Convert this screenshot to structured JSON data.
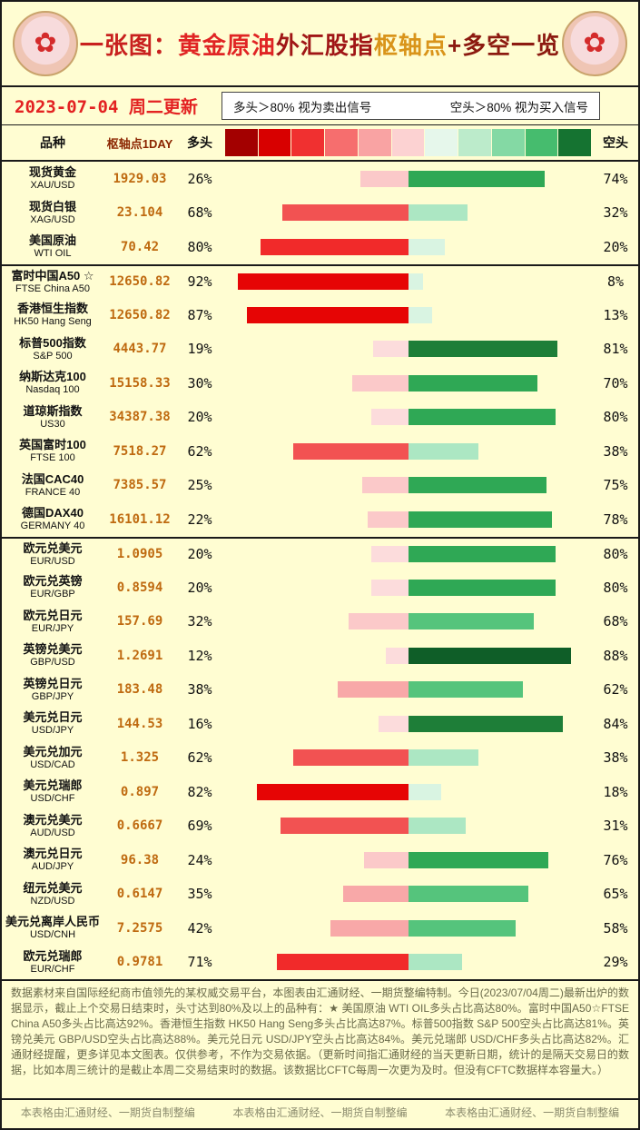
{
  "page": {
    "title_segments": [
      {
        "text": "一张图：",
        "color": "#C8201E"
      },
      {
        "text": "黄金原油",
        "color": "#E02424"
      },
      {
        "text": "外汇股指",
        "color": "#A01616"
      },
      {
        "text": "枢轴点",
        "color": "#D9941A"
      },
      {
        "text": "+多空一览",
        "color": "#8C1A10"
      }
    ],
    "date_text": "2023-07-04 周二更新",
    "legend": {
      "long_note": "多头＞80% 视为卖出信号",
      "short_note": "空头＞80% 视为买入信号"
    },
    "columns": {
      "name": "品种",
      "pivot": "枢轴点1DAY",
      "long": "多头",
      "short": "空头"
    },
    "icons": {
      "flower_glyph": "✿"
    },
    "scale_boxes": [
      "#A30000",
      "#D80000",
      "#F03030",
      "#F66E6E",
      "#F9A3A3",
      "#FCD2D2",
      "#E6F7EB",
      "#BCEBCB",
      "#84D9A4",
      "#46BC6E",
      "#157331"
    ],
    "long_color_steps": [
      {
        "min": 81,
        "color": "#E60505"
      },
      {
        "min": 70,
        "color": "#F12A2A"
      },
      {
        "min": 60,
        "color": "#F25252"
      },
      {
        "min": 45,
        "color": "#F68484"
      },
      {
        "min": 33,
        "color": "#F8A8A8"
      },
      {
        "min": 22,
        "color": "#FBC9C9"
      },
      {
        "min": 0,
        "color": "#FCDCDC"
      }
    ],
    "short_color_steps": [
      {
        "min": 85,
        "color": "#0F5E28"
      },
      {
        "min": 81,
        "color": "#1E7E38"
      },
      {
        "min": 70,
        "color": "#2FA855"
      },
      {
        "min": 55,
        "color": "#55C47C"
      },
      {
        "min": 40,
        "color": "#8CDCA8"
      },
      {
        "min": 25,
        "color": "#ACE7C3"
      },
      {
        "min": 0,
        "color": "#D9F4E2"
      }
    ],
    "footnote": "数据素材来自国际经纪商市值领先的某权威交易平台，本图表由汇通财经、一期货整编特制。今日(2023/07/04周二)最新出炉的数据显示，截止上个交易日结束时，头寸达到80%及以上的品种有：★ 美国原油 WTI OIL多头占比高达80%。富时中国A50☆FTSE China A50多头占比高达92%。香港恒生指数 HK50 Hang Seng多头占比高达87%。标普500指数 S&P 500空头占比高达81%。英镑兑美元 GBP/USD空头占比高达88%。美元兑日元 USD/JPY空头占比高达84%。美元兑瑞郎 USD/CHF多头占比高达82%。汇通财经提醒，更多详见本文图表。仅供参考，不作为交易依据。（更新时间指汇通财经的当天更新日期，统计的是隔天交易日的数据，比如本周三统计的是截止本周二交易结束时的数据。该数据比CFTC每周一次更为及时。但没有CFTC数据样本容量大。）",
    "footer_items": [
      "本表格由汇通财经、一期货自制整编",
      "本表格由汇通财经、一期货自制整编",
      "本表格由汇通财经、一期货自制整编"
    ]
  },
  "chart_data": {
    "type": "bar",
    "orientation": "horizontal-diverging",
    "title": "一张图：黄金原油外汇股指枢轴点+多空一览",
    "value_unit": "%",
    "long_label": "多头",
    "short_label": "空头",
    "xlim_half_percent": 100,
    "sections": [
      {
        "name": "commodities",
        "rows": [
          {
            "name": "现货黄金",
            "code": "XAU/USD",
            "pivot": "1929.03",
            "long": 26,
            "short": 74
          },
          {
            "name": "现货白银",
            "code": "XAG/USD",
            "pivot": "23.104",
            "long": 68,
            "short": 32
          },
          {
            "name": "美国原油",
            "code": "WTI OIL",
            "pivot": "70.42",
            "long": 80,
            "short": 20
          }
        ]
      },
      {
        "name": "indices",
        "rows": [
          {
            "name": "富时中国A50 ☆",
            "code": "FTSE China A50",
            "pivot": "12650.82",
            "long": 92,
            "short": 8
          },
          {
            "name": "香港恒生指数",
            "code": "HK50 Hang Seng",
            "pivot": "12650.82",
            "long": 87,
            "short": 13
          },
          {
            "name": "标普500指数",
            "code": "S&P 500",
            "pivot": "4443.77",
            "long": 19,
            "short": 81
          },
          {
            "name": "纳斯达克100",
            "code": "Nasdaq 100",
            "pivot": "15158.33",
            "long": 30,
            "short": 70
          },
          {
            "name": "道琼斯指数",
            "code": "US30",
            "pivot": "34387.38",
            "long": 20,
            "short": 80
          },
          {
            "name": "英国富时100",
            "code": "FTSE 100",
            "pivot": "7518.27",
            "long": 62,
            "short": 38
          },
          {
            "name": "法国CAC40",
            "code": "FRANCE 40",
            "pivot": "7385.57",
            "long": 25,
            "short": 75
          },
          {
            "name": "德国DAX40",
            "code": "GERMANY 40",
            "pivot": "16101.12",
            "long": 22,
            "short": 78
          }
        ]
      },
      {
        "name": "forex",
        "rows": [
          {
            "name": "欧元兑美元",
            "code": "EUR/USD",
            "pivot": "1.0905",
            "long": 20,
            "short": 80
          },
          {
            "name": "欧元兑英镑",
            "code": "EUR/GBP",
            "pivot": "0.8594",
            "long": 20,
            "short": 80
          },
          {
            "name": "欧元兑日元",
            "code": "EUR/JPY",
            "pivot": "157.69",
            "long": 32,
            "short": 68
          },
          {
            "name": "英镑兑美元",
            "code": "GBP/USD",
            "pivot": "1.2691",
            "long": 12,
            "short": 88
          },
          {
            "name": "英镑兑日元",
            "code": "GBP/JPY",
            "pivot": "183.48",
            "long": 38,
            "short": 62
          },
          {
            "name": "美元兑日元",
            "code": "USD/JPY",
            "pivot": "144.53",
            "long": 16,
            "short": 84
          },
          {
            "name": "美元兑加元",
            "code": "USD/CAD",
            "pivot": "1.325",
            "long": 62,
            "short": 38
          },
          {
            "name": "美元兑瑞郎",
            "code": "USD/CHF",
            "pivot": "0.897",
            "long": 82,
            "short": 18
          },
          {
            "name": "澳元兑美元",
            "code": "AUD/USD",
            "pivot": "0.6667",
            "long": 69,
            "short": 31
          },
          {
            "name": "澳元兑日元",
            "code": "AUD/JPY",
            "pivot": "96.38",
            "long": 24,
            "short": 76
          },
          {
            "name": "纽元兑美元",
            "code": "NZD/USD",
            "pivot": "0.6147",
            "long": 35,
            "short": 65
          },
          {
            "name": "美元兑离岸人民币",
            "code": "USD/CNH",
            "pivot": "7.2575",
            "long": 42,
            "short": 58
          },
          {
            "name": "欧元兑瑞郎",
            "code": "EUR/CHF",
            "pivot": "0.9781",
            "long": 71,
            "short": 29
          }
        ]
      }
    ]
  }
}
